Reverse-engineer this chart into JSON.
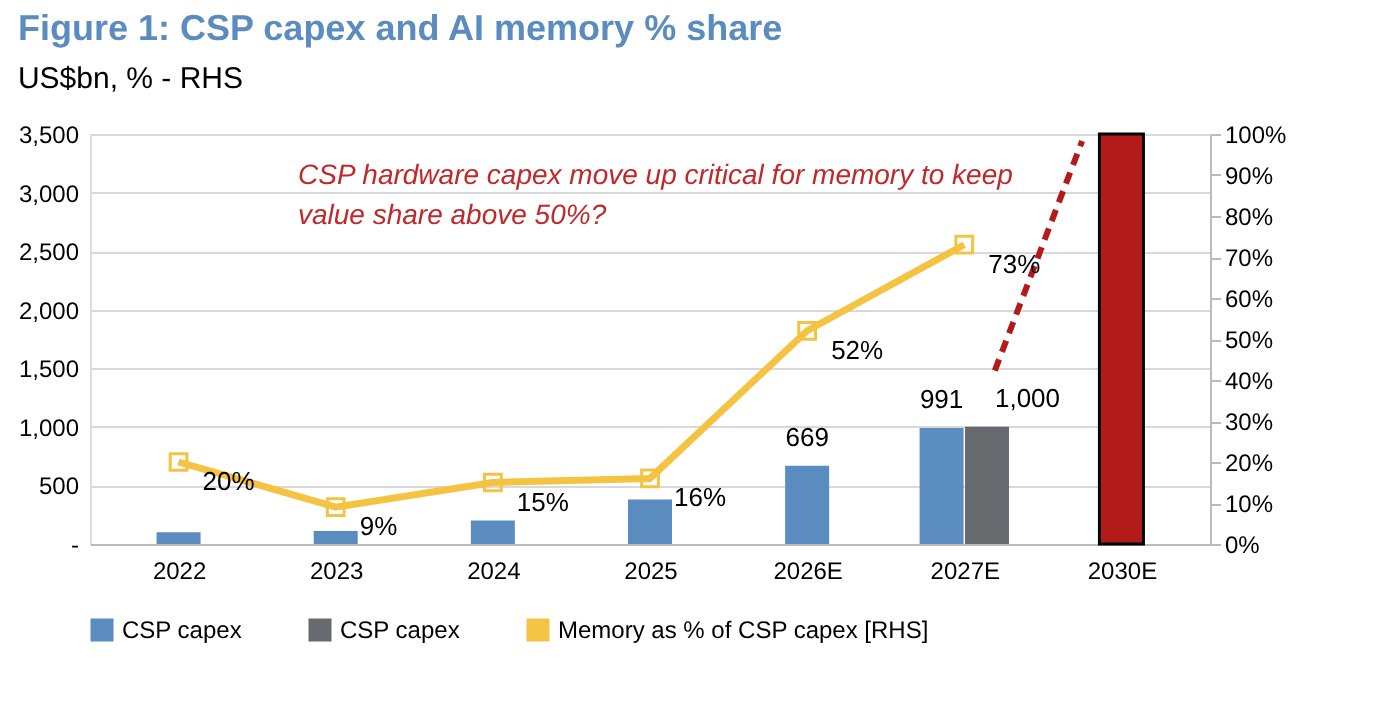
{
  "chart_data": {
    "type": "bar",
    "title": "Figure 1: CSP capex and AI memory % share",
    "subtitle": "US$bn, % - RHS",
    "categories": [
      "2022",
      "2023",
      "2024",
      "2025",
      "2026E",
      "2027E",
      "2030E"
    ],
    "series": [
      {
        "name": "CSP capex",
        "color": "#5b8cc0",
        "values": [
          100,
          110,
          200,
          380,
          669,
          991,
          null
        ],
        "value_labels": [
          null,
          null,
          null,
          null,
          "669",
          "991",
          null
        ]
      },
      {
        "name": "CSP capex",
        "color": "#666a6e",
        "values": [
          null,
          null,
          null,
          null,
          null,
          1000,
          null
        ],
        "value_labels": [
          null,
          null,
          null,
          null,
          null,
          "1,000",
          null
        ]
      },
      {
        "color": "#b31b1b",
        "values": [
          null,
          null,
          null,
          null,
          null,
          null,
          3500
        ]
      },
      {
        "name": "Memory as % of CSP capex [RHS]",
        "type": "line",
        "axis": "y2",
        "color": "#f5c342",
        "marker": "square",
        "values": [
          20,
          9,
          15,
          16,
          52,
          73,
          null
        ],
        "value_labels": [
          "20%",
          "9%",
          "15%",
          "16%",
          "52%",
          "73%",
          null
        ]
      }
    ],
    "ylim": [
      0,
      3500
    ],
    "yticks": [
      {
        "value": 0,
        "label": "-"
      },
      {
        "value": 500,
        "label": "500"
      },
      {
        "value": 1000,
        "label": "1,000"
      },
      {
        "value": 1500,
        "label": "1,500"
      },
      {
        "value": 2000,
        "label": "2,000"
      },
      {
        "value": 2500,
        "label": "2,500"
      },
      {
        "value": 3000,
        "label": "3,000"
      },
      {
        "value": 3500,
        "label": "3,500"
      }
    ],
    "y2lim": [
      0,
      100
    ],
    "y2ticks": [
      {
        "value": 0,
        "label": "0%"
      },
      {
        "value": 10,
        "label": "10%"
      },
      {
        "value": 20,
        "label": "20%"
      },
      {
        "value": 30,
        "label": "30%"
      },
      {
        "value": 40,
        "label": "40%"
      },
      {
        "value": 50,
        "label": "50%"
      },
      {
        "value": 60,
        "label": "60%"
      },
      {
        "value": 70,
        "label": "70%"
      },
      {
        "value": 80,
        "label": "80%"
      },
      {
        "value": 90,
        "label": "90%"
      },
      {
        "value": 100,
        "label": "100%"
      }
    ],
    "grid": "y",
    "legend": "bottom",
    "annotations": [
      "CSP hardware capex move up critical for memory to keep\nvalue share above 50%?"
    ]
  }
}
